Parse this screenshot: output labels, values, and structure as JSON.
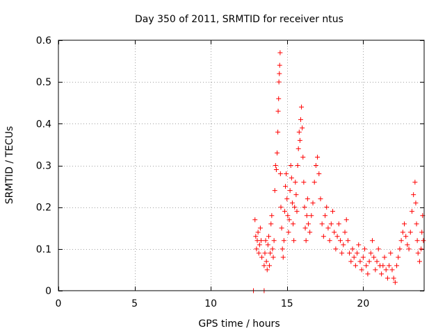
{
  "chart_data": {
    "type": "scatter",
    "title": "Day 350 of 2011, SRMTID for receiver ntus",
    "xlabel": "GPS time / hours",
    "ylabel": "SRMTID / TECUs",
    "xlim": [
      0,
      24
    ],
    "ylim": [
      0,
      0.6
    ],
    "xticks": [
      0,
      5,
      10,
      15,
      20
    ],
    "xtick_labels": [
      "0",
      "5",
      "10",
      "15",
      "20"
    ],
    "yticks": [
      0,
      0.1,
      0.2,
      0.3,
      0.4,
      0.5,
      0.6
    ],
    "ytick_labels": [
      "0",
      "0.1",
      "0.2",
      "0.3",
      "0.4",
      "0.5",
      "0.6"
    ],
    "grid": true,
    "marker": "+",
    "color": "#ff0000",
    "series": [
      {
        "name": "SRMTID",
        "points": [
          [
            12.8,
            0.0
          ],
          [
            13.5,
            0.0
          ],
          [
            12.9,
            0.17
          ],
          [
            12.95,
            0.13
          ],
          [
            13.0,
            0.1
          ],
          [
            13.05,
            0.12
          ],
          [
            13.1,
            0.14
          ],
          [
            13.15,
            0.09
          ],
          [
            13.2,
            0.11
          ],
          [
            13.25,
            0.15
          ],
          [
            13.3,
            0.12
          ],
          [
            13.35,
            0.08
          ],
          [
            13.5,
            0.06
          ],
          [
            13.55,
            0.09
          ],
          [
            13.6,
            0.12
          ],
          [
            13.65,
            0.07
          ],
          [
            13.7,
            0.05
          ],
          [
            13.75,
            0.11
          ],
          [
            13.8,
            0.13
          ],
          [
            13.85,
            0.06
          ],
          [
            13.9,
            0.09
          ],
          [
            13.95,
            0.16
          ],
          [
            14.0,
            0.18
          ],
          [
            14.05,
            0.1
          ],
          [
            14.1,
            0.08
          ],
          [
            14.15,
            0.12
          ],
          [
            14.2,
            0.24
          ],
          [
            14.25,
            0.3
          ],
          [
            14.3,
            0.29
          ],
          [
            14.35,
            0.33
          ],
          [
            14.4,
            0.38
          ],
          [
            14.42,
            0.43
          ],
          [
            14.45,
            0.46
          ],
          [
            14.47,
            0.5
          ],
          [
            14.5,
            0.52
          ],
          [
            14.52,
            0.54
          ],
          [
            14.55,
            0.57
          ],
          [
            14.57,
            0.28
          ],
          [
            14.6,
            0.2
          ],
          [
            14.65,
            0.15
          ],
          [
            14.7,
            0.1
          ],
          [
            14.75,
            0.08
          ],
          [
            14.8,
            0.12
          ],
          [
            14.85,
            0.19
          ],
          [
            14.9,
            0.25
          ],
          [
            14.95,
            0.28
          ],
          [
            15.0,
            0.22
          ],
          [
            15.05,
            0.18
          ],
          [
            15.1,
            0.14
          ],
          [
            15.15,
            0.17
          ],
          [
            15.2,
            0.24
          ],
          [
            15.25,
            0.3
          ],
          [
            15.3,
            0.27
          ],
          [
            15.35,
            0.21
          ],
          [
            15.4,
            0.16
          ],
          [
            15.45,
            0.12
          ],
          [
            15.5,
            0.2
          ],
          [
            15.55,
            0.26
          ],
          [
            15.6,
            0.23
          ],
          [
            15.65,
            0.19
          ],
          [
            15.7,
            0.3
          ],
          [
            15.75,
            0.34
          ],
          [
            15.8,
            0.38
          ],
          [
            15.85,
            0.36
          ],
          [
            15.9,
            0.41
          ],
          [
            15.95,
            0.44
          ],
          [
            16.0,
            0.39
          ],
          [
            16.05,
            0.32
          ],
          [
            16.1,
            0.26
          ],
          [
            16.15,
            0.2
          ],
          [
            16.2,
            0.15
          ],
          [
            16.25,
            0.12
          ],
          [
            16.3,
            0.18
          ],
          [
            16.35,
            0.22
          ],
          [
            16.4,
            0.16
          ],
          [
            16.5,
            0.14
          ],
          [
            16.6,
            0.18
          ],
          [
            16.7,
            0.21
          ],
          [
            16.8,
            0.26
          ],
          [
            16.9,
            0.3
          ],
          [
            17.0,
            0.32
          ],
          [
            17.1,
            0.28
          ],
          [
            17.2,
            0.22
          ],
          [
            17.3,
            0.16
          ],
          [
            17.4,
            0.13
          ],
          [
            17.5,
            0.18
          ],
          [
            17.6,
            0.2
          ],
          [
            17.7,
            0.15
          ],
          [
            17.8,
            0.12
          ],
          [
            17.9,
            0.16
          ],
          [
            18.0,
            0.19
          ],
          [
            18.1,
            0.14
          ],
          [
            18.2,
            0.1
          ],
          [
            18.3,
            0.13
          ],
          [
            18.4,
            0.16
          ],
          [
            18.5,
            0.12
          ],
          [
            18.6,
            0.09
          ],
          [
            18.7,
            0.11
          ],
          [
            18.8,
            0.14
          ],
          [
            18.9,
            0.17
          ],
          [
            19.0,
            0.12
          ],
          [
            19.1,
            0.09
          ],
          [
            19.2,
            0.07
          ],
          [
            19.3,
            0.1
          ],
          [
            19.4,
            0.08
          ],
          [
            19.5,
            0.06
          ],
          [
            19.6,
            0.09
          ],
          [
            19.7,
            0.11
          ],
          [
            19.8,
            0.07
          ],
          [
            19.9,
            0.05
          ],
          [
            20.0,
            0.08
          ],
          [
            20.1,
            0.1
          ],
          [
            20.2,
            0.06
          ],
          [
            20.3,
            0.04
          ],
          [
            20.4,
            0.07
          ],
          [
            20.5,
            0.09
          ],
          [
            20.6,
            0.12
          ],
          [
            20.7,
            0.08
          ],
          [
            20.8,
            0.05
          ],
          [
            20.9,
            0.07
          ],
          [
            21.0,
            0.1
          ],
          [
            21.1,
            0.06
          ],
          [
            21.2,
            0.04
          ],
          [
            21.3,
            0.06
          ],
          [
            21.4,
            0.08
          ],
          [
            21.5,
            0.05
          ],
          [
            21.6,
            0.03
          ],
          [
            21.7,
            0.06
          ],
          [
            21.8,
            0.09
          ],
          [
            21.9,
            0.05
          ],
          [
            22.0,
            0.03
          ],
          [
            22.1,
            0.02
          ],
          [
            22.2,
            0.06
          ],
          [
            22.3,
            0.08
          ],
          [
            22.4,
            0.1
          ],
          [
            22.5,
            0.12
          ],
          [
            22.6,
            0.14
          ],
          [
            22.7,
            0.16
          ],
          [
            22.8,
            0.13
          ],
          [
            22.9,
            0.11
          ],
          [
            23.0,
            0.1
          ],
          [
            23.1,
            0.14
          ],
          [
            23.2,
            0.19
          ],
          [
            23.3,
            0.23
          ],
          [
            23.4,
            0.26
          ],
          [
            23.45,
            0.21
          ],
          [
            23.5,
            0.16
          ],
          [
            23.55,
            0.12
          ],
          [
            23.6,
            0.09
          ],
          [
            23.7,
            0.07
          ],
          [
            23.8,
            0.1
          ],
          [
            23.85,
            0.14
          ],
          [
            23.9,
            0.18
          ],
          [
            23.95,
            0.12
          ]
        ]
      }
    ]
  }
}
